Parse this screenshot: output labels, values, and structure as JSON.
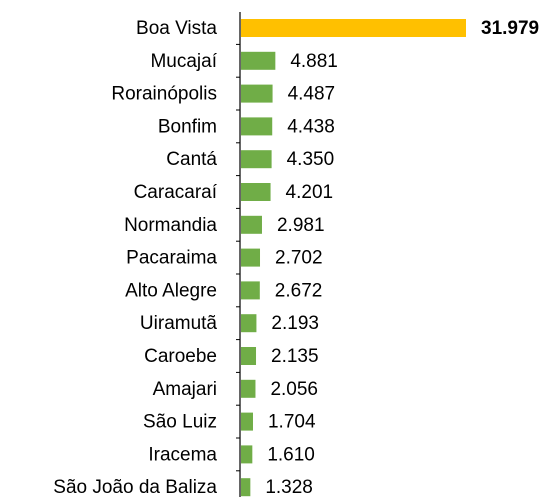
{
  "chart_data": {
    "type": "bar",
    "orientation": "horizontal",
    "categories": [
      "Boa Vista",
      "Mucajaí",
      "Rorainópolis",
      "Bonfim",
      "Cantá",
      "Caracaraí",
      "Normandia",
      "Pacaraima",
      "Alto Alegre",
      "Uiramutã",
      "Caroebe",
      "Amajari",
      "São Luiz",
      "Iracema",
      "São João da Baliza"
    ],
    "values": [
      31979,
      4881,
      4487,
      4438,
      4350,
      4201,
      2981,
      2702,
      2672,
      2193,
      2135,
      2056,
      1704,
      1610,
      1328
    ],
    "value_labels": [
      "31.979",
      "4.881",
      "4.487",
      "4.438",
      "4.350",
      "4.201",
      "2.981",
      "2.702",
      "2.672",
      "2.193",
      "2.135",
      "2.056",
      "1.704",
      "1.610",
      "1.328"
    ],
    "colors": [
      "#ffc000",
      "#70ad47",
      "#70ad47",
      "#70ad47",
      "#70ad47",
      "#70ad47",
      "#70ad47",
      "#70ad47",
      "#70ad47",
      "#70ad47",
      "#70ad47",
      "#70ad47",
      "#70ad47",
      "#70ad47",
      "#70ad47"
    ]
  }
}
